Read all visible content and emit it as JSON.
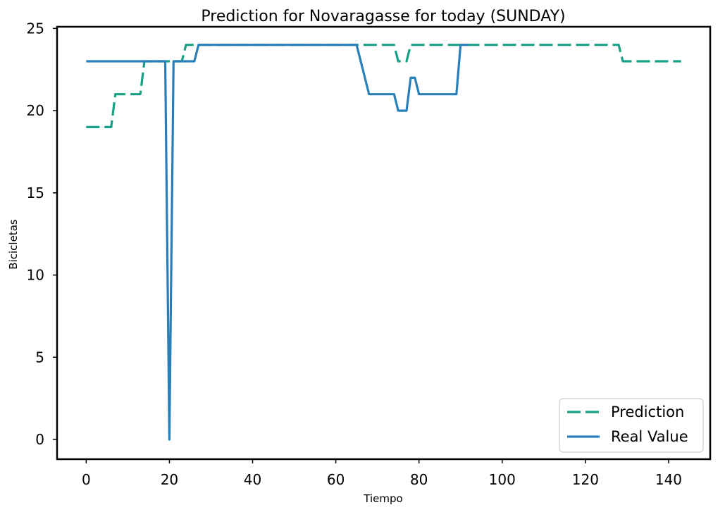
{
  "chart_data": {
    "type": "line",
    "title": "Prediction for Novaragasse for today (SUNDAY)",
    "xlabel": "Tiempo",
    "ylabel": "Bicicletas",
    "xlim": [
      -7,
      150
    ],
    "ylim": [
      -1.2,
      25.1
    ],
    "xticks": [
      0,
      20,
      40,
      60,
      80,
      100,
      120,
      140
    ],
    "yticks": [
      0,
      5,
      10,
      15,
      20,
      25
    ],
    "grid": false,
    "legend_position": "bottom-right",
    "series": [
      {
        "name": "Prediction",
        "color": "#16a085",
        "style": "dashed",
        "x": [
          0,
          6,
          7,
          13,
          14,
          23,
          24,
          74,
          75,
          77,
          78,
          128,
          129,
          143
        ],
        "y": [
          19,
          19,
          21,
          21,
          23,
          23,
          24,
          24,
          23,
          23,
          24,
          24,
          23,
          23
        ]
      },
      {
        "name": "Real Value",
        "color": "#2980b9",
        "style": "solid",
        "x": [
          0,
          19,
          20,
          21,
          26,
          27,
          65,
          68,
          74,
          75,
          77,
          78,
          79,
          80,
          89,
          90,
          92
        ],
        "y": [
          23,
          23,
          0,
          23,
          23,
          24,
          24,
          21,
          21,
          20,
          20,
          22,
          22,
          21,
          21,
          24,
          24
        ]
      }
    ]
  }
}
